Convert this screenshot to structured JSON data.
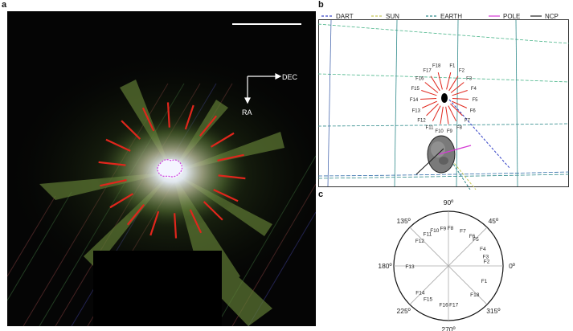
{
  "panels": {
    "a": {
      "letter": "a",
      "axes": {
        "dec_label": "DEC",
        "ra_label": "RA"
      },
      "colors": {
        "ray": "#e0261c",
        "nucleus_outline": "#d24be0",
        "scale_bar": "#ffffff"
      }
    },
    "b": {
      "letter": "b",
      "legend": [
        {
          "label": "DART",
          "color": "#3a48c8",
          "style": "dashed"
        },
        {
          "label": "SUN",
          "color": "#c8c858",
          "style": "dashed"
        },
        {
          "label": "EARTH",
          "color": "#2e8a8a",
          "style": "dashed"
        },
        {
          "label": "POLE",
          "color": "#d43ad4",
          "style": "solid"
        },
        {
          "label": "NCP",
          "color": "#222222",
          "style": "solid"
        }
      ],
      "features": [
        "F1",
        "F2",
        "F3",
        "F4",
        "F5",
        "F6",
        "F7",
        "F8",
        "F9",
        "F10",
        "F11",
        "F12",
        "F13",
        "F14",
        "F15",
        "F16",
        "F17",
        "F18"
      ]
    },
    "c": {
      "letter": "c",
      "angles": [
        "0º",
        "45º",
        "90º",
        "135º",
        "180º",
        "225º",
        "270º",
        "315º"
      ],
      "features": [
        {
          "label": "F1",
          "angle": 338
        },
        {
          "label": "F2",
          "angle": 8
        },
        {
          "label": "F3",
          "angle": 15
        },
        {
          "label": "F4",
          "angle": 27
        },
        {
          "label": "F5",
          "angle": 45
        },
        {
          "label": "F6",
          "angle": 52
        },
        {
          "label": "F7",
          "angle": 68
        },
        {
          "label": "F8",
          "angle": 87
        },
        {
          "label": "F9",
          "angle": 98
        },
        {
          "label": "F10",
          "angle": 111
        },
        {
          "label": "F11",
          "angle": 123
        },
        {
          "label": "F12",
          "angle": 138
        },
        {
          "label": "F13",
          "angle": 180
        },
        {
          "label": "F14",
          "angle": 223
        },
        {
          "label": "F15",
          "angle": 238
        },
        {
          "label": "F16",
          "angle": 263
        },
        {
          "label": "F17",
          "angle": 278
        },
        {
          "label": "F18",
          "angle": 313
        }
      ]
    }
  }
}
